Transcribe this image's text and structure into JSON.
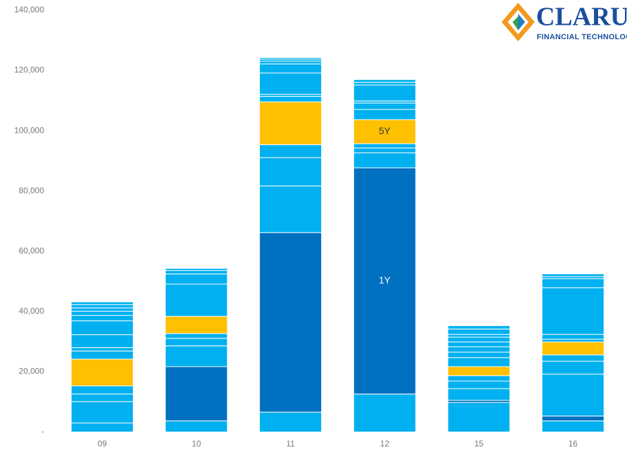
{
  "logo": {
    "name": "CLARUS",
    "tagline": "FINANCIAL TECHNOLOGY"
  },
  "chart_data": {
    "type": "stacked_bar",
    "categories": [
      "09",
      "10",
      "11",
      "12",
      "15",
      "16"
    ],
    "ylim": [
      0,
      140000
    ],
    "yticks": [
      {
        "value": 0,
        "label": "-"
      },
      {
        "value": 20000,
        "label": "20,000"
      },
      {
        "value": 40000,
        "label": "40,000"
      },
      {
        "value": 60000,
        "label": "60,000"
      },
      {
        "value": 80000,
        "label": "80,000"
      },
      {
        "value": 100000,
        "label": "100,000"
      },
      {
        "value": 120000,
        "label": "120,000"
      },
      {
        "value": 140000,
        "label": "140,000"
      }
    ],
    "stacks": [
      [
        {
          "value": 3000,
          "color": "#00b0f0"
        },
        {
          "value": 7100,
          "color": "#00b0f0"
        },
        {
          "value": 2500,
          "color": "#00b0f0"
        },
        {
          "value": 2700,
          "color": "#00b0f0"
        },
        {
          "value": 8900,
          "color": "#ffc000"
        },
        {
          "value": 2700,
          "color": "#00b0f0"
        },
        {
          "value": 1100,
          "color": "#00b0f0"
        },
        {
          "value": 4300,
          "color": "#00b0f0"
        },
        {
          "value": 4600,
          "color": "#00b0f0"
        },
        {
          "value": 1800,
          "color": "#00b0f0"
        },
        {
          "value": 1400,
          "color": "#00b0f0"
        },
        {
          "value": 1100,
          "color": "#00b0f0"
        },
        {
          "value": 1100,
          "color": "#00b0f0"
        },
        {
          "value": 900,
          "color": "#00b0f0"
        }
      ],
      [
        {
          "value": 3700,
          "color": "#00b0f0"
        },
        {
          "value": 18000,
          "color": "#0070c0"
        },
        {
          "value": 6900,
          "color": "#00b0f0"
        },
        {
          "value": 2500,
          "color": "#00b0f0"
        },
        {
          "value": 1600,
          "color": "#00b0f0"
        },
        {
          "value": 5700,
          "color": "#ffc000"
        },
        {
          "value": 10700,
          "color": "#00b0f0"
        },
        {
          "value": 3400,
          "color": "#00b0f0"
        },
        {
          "value": 1100,
          "color": "#00b0f0"
        },
        {
          "value": 700,
          "color": "#00b0f0"
        }
      ],
      [
        {
          "value": 6600,
          "color": "#00b0f0"
        },
        {
          "value": 59600,
          "color": "#0070c0"
        },
        {
          "value": 15500,
          "color": "#00b0f0"
        },
        {
          "value": 9400,
          "color": "#00b0f0"
        },
        {
          "value": 4300,
          "color": "#00b0f0"
        },
        {
          "value": 14200,
          "color": "#ffc000"
        },
        {
          "value": 1800,
          "color": "#00b0f0"
        },
        {
          "value": 700,
          "color": "#00b0f0"
        },
        {
          "value": 7100,
          "color": "#00b0f0"
        },
        {
          "value": 3000,
          "color": "#00b0f0"
        },
        {
          "value": 900,
          "color": "#00b0f0"
        },
        {
          "value": 700,
          "color": "#00b0f0"
        },
        {
          "value": 500,
          "color": "#00b0f0"
        }
      ],
      [
        {
          "value": 12600,
          "color": "#00b0f0"
        },
        {
          "value": 75100,
          "color": "#0070c0",
          "label": "1Y"
        },
        {
          "value": 5000,
          "color": "#00b0f0"
        },
        {
          "value": 1600,
          "color": "#00b0f0"
        },
        {
          "value": 1400,
          "color": "#00b0f0"
        },
        {
          "value": 8000,
          "color": "#ffc000",
          "label": "5Y"
        },
        {
          "value": 3400,
          "color": "#00b0f0"
        },
        {
          "value": 2100,
          "color": "#00b0f0"
        },
        {
          "value": 700,
          "color": "#00b0f0"
        },
        {
          "value": 5300,
          "color": "#00b0f0"
        },
        {
          "value": 900,
          "color": "#00b0f0"
        },
        {
          "value": 900,
          "color": "#00b0f0"
        }
      ],
      [
        {
          "value": 9800,
          "color": "#00b0f0"
        },
        {
          "value": 700,
          "color": "#0070c0"
        },
        {
          "value": 3900,
          "color": "#00b0f0"
        },
        {
          "value": 2500,
          "color": "#00b0f0"
        },
        {
          "value": 1800,
          "color": "#00b0f0"
        },
        {
          "value": 3000,
          "color": "#ffc000"
        },
        {
          "value": 3000,
          "color": "#00b0f0"
        },
        {
          "value": 1800,
          "color": "#00b0f0"
        },
        {
          "value": 1800,
          "color": "#00b0f0"
        },
        {
          "value": 1600,
          "color": "#00b0f0"
        },
        {
          "value": 1600,
          "color": "#00b0f0"
        },
        {
          "value": 900,
          "color": "#00b0f0"
        },
        {
          "value": 1800,
          "color": "#00b0f0"
        },
        {
          "value": 1100,
          "color": "#00b0f0"
        }
      ],
      [
        {
          "value": 3700,
          "color": "#00b0f0"
        },
        {
          "value": 1600,
          "color": "#0070c0"
        },
        {
          "value": 13900,
          "color": "#00b0f0"
        },
        {
          "value": 4300,
          "color": "#00b0f0"
        },
        {
          "value": 2100,
          "color": "#00b0f0"
        },
        {
          "value": 4300,
          "color": "#ffc000"
        },
        {
          "value": 900,
          "color": "#00b0f0"
        },
        {
          "value": 1600,
          "color": "#00b0f0"
        },
        {
          "value": 15500,
          "color": "#00b0f0"
        },
        {
          "value": 3000,
          "color": "#00b0f0"
        },
        {
          "value": 700,
          "color": "#00b0f0"
        },
        {
          "value": 900,
          "color": "#00b0f0"
        }
      ]
    ]
  }
}
